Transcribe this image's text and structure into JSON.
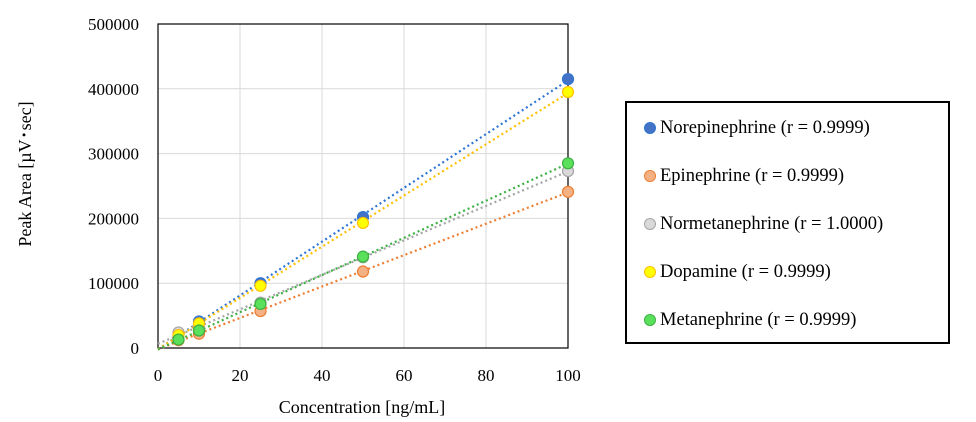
{
  "chart_data": {
    "type": "scatter",
    "xlabel": "Concentration [ng/mL]",
    "ylabel": "Peak Area [µV･sec]",
    "xlim": [
      0,
      100
    ],
    "ylim": [
      0,
      500000
    ],
    "xticks": [
      "0",
      "20",
      "40",
      "60",
      "80",
      "100"
    ],
    "yticks": [
      "0",
      "100000",
      "200000",
      "300000",
      "400000",
      "500000"
    ],
    "grid": true,
    "legend_position": "right",
    "trendlines": "linear, dotted",
    "series": [
      {
        "name": "Norepinephrine (r = 0.9999)",
        "color": "#4472C4",
        "line_color": "#2E75D6",
        "x": [
          5,
          10,
          25,
          50,
          100
        ],
        "y": [
          21000,
          41000,
          100000,
          202000,
          415000
        ]
      },
      {
        "name": "Epinephrine (r = 0.9999)",
        "color": "#F4B183",
        "line_color": "#ED7D31",
        "x": [
          5,
          10,
          25,
          50,
          100
        ],
        "y": [
          12000,
          22000,
          57000,
          118000,
          241000
        ]
      },
      {
        "name": "Normetanephrine (r = 1.0000)",
        "color": "#D9D9D9",
        "line_color": "#A5A5A5",
        "x": [
          5,
          10,
          25,
          50,
          100
        ],
        "y": [
          24000,
          31000,
          70000,
          140000,
          273000
        ]
      },
      {
        "name": "Dopamine (r = 0.9999)",
        "color": "#FFFF00",
        "line_color": "#FFC000",
        "x": [
          5,
          10,
          25,
          50,
          100
        ],
        "y": [
          20000,
          38000,
          96000,
          193000,
          395000
        ]
      },
      {
        "name": "Metanephrine (r = 0.9999)",
        "color": "#5BE05B",
        "line_color": "#3CB043",
        "x": [
          5,
          10,
          25,
          50,
          100
        ],
        "y": [
          13000,
          27000,
          68000,
          141000,
          285000
        ]
      }
    ]
  }
}
